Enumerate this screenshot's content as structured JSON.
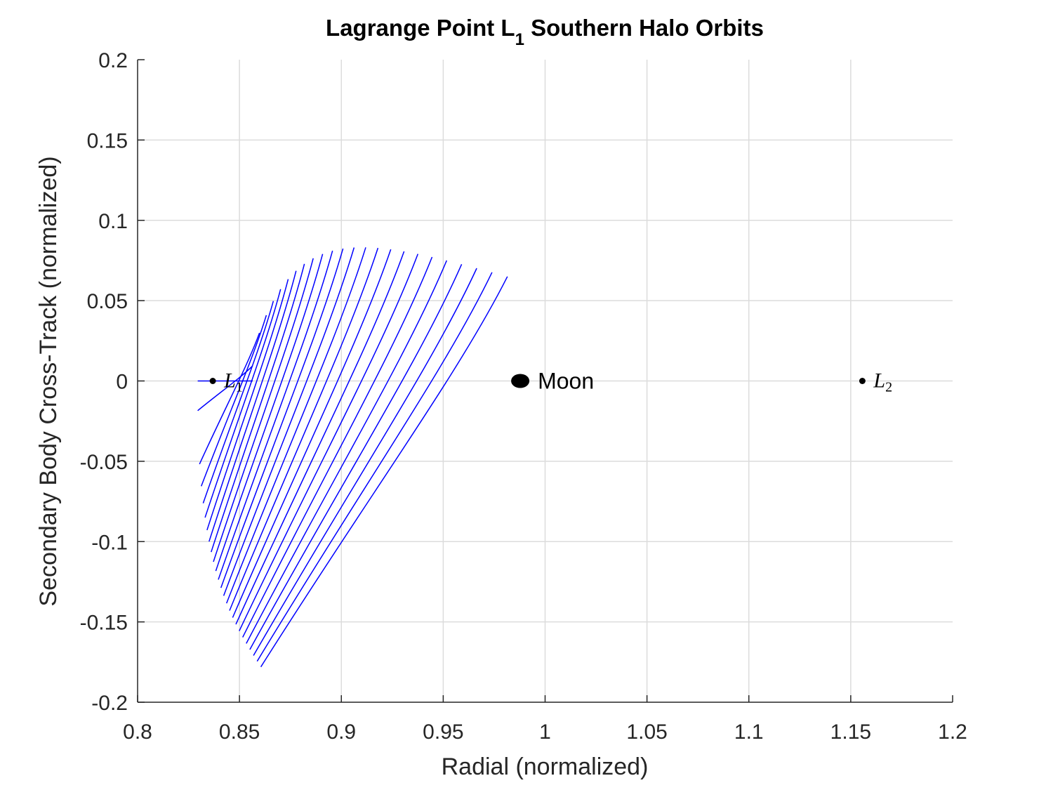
{
  "chart_data": {
    "type": "line",
    "title": "Lagrange Point L",
    "title_subscript": "1",
    "title_suffix": " Southern Halo Orbits",
    "xlabel": "Radial (normalized)",
    "ylabel": "Secondary Body Cross-Track (normalized)",
    "xlim": [
      0.8,
      1.2
    ],
    "ylim": [
      -0.2,
      0.2
    ],
    "xticks": [
      0.8,
      0.85,
      0.9,
      0.95,
      1,
      1.05,
      1.1,
      1.15,
      1.2
    ],
    "yticks": [
      -0.2,
      -0.15,
      -0.1,
      -0.05,
      0,
      0.05,
      0.1,
      0.15,
      0.2
    ],
    "xtick_labels": [
      "0.8",
      "0.85",
      "0.9",
      "0.95",
      "1",
      "1.05",
      "1.1",
      "1.15",
      "1.2"
    ],
    "ytick_labels": [
      "-0.2",
      "-0.15",
      "-0.1",
      "-0.05",
      "0",
      "0.05",
      "0.1",
      "0.15",
      "0.2"
    ],
    "grid": true,
    "orbit_color": "#0000ff",
    "orbit_family": {
      "count": 24,
      "start": {
        "x": 0.8295,
        "y": -0.0185
      },
      "first_end": {
        "x": 0.8565,
        "y": 0.0095
      },
      "bottom_last": {
        "x": 0.8605,
        "y": -0.178
      },
      "top_last": {
        "x": 0.9815,
        "y": 0.065
      },
      "top_peak": {
        "x": 0.9395,
        "y": 0.083
      }
    },
    "l1_segment": {
      "x": [
        0.8295,
        0.8565
      ],
      "y": [
        0,
        0
      ]
    },
    "points": [
      {
        "name": "L1",
        "label": "L",
        "subscript": "1",
        "x": 0.8369,
        "y": 0,
        "type": "dot"
      },
      {
        "name": "Moon",
        "label": "Moon",
        "x": 0.9878,
        "y": 0,
        "type": "moon"
      },
      {
        "name": "L2",
        "label": "L",
        "subscript": "2",
        "x": 1.1557,
        "y": 0,
        "type": "dot"
      }
    ]
  }
}
